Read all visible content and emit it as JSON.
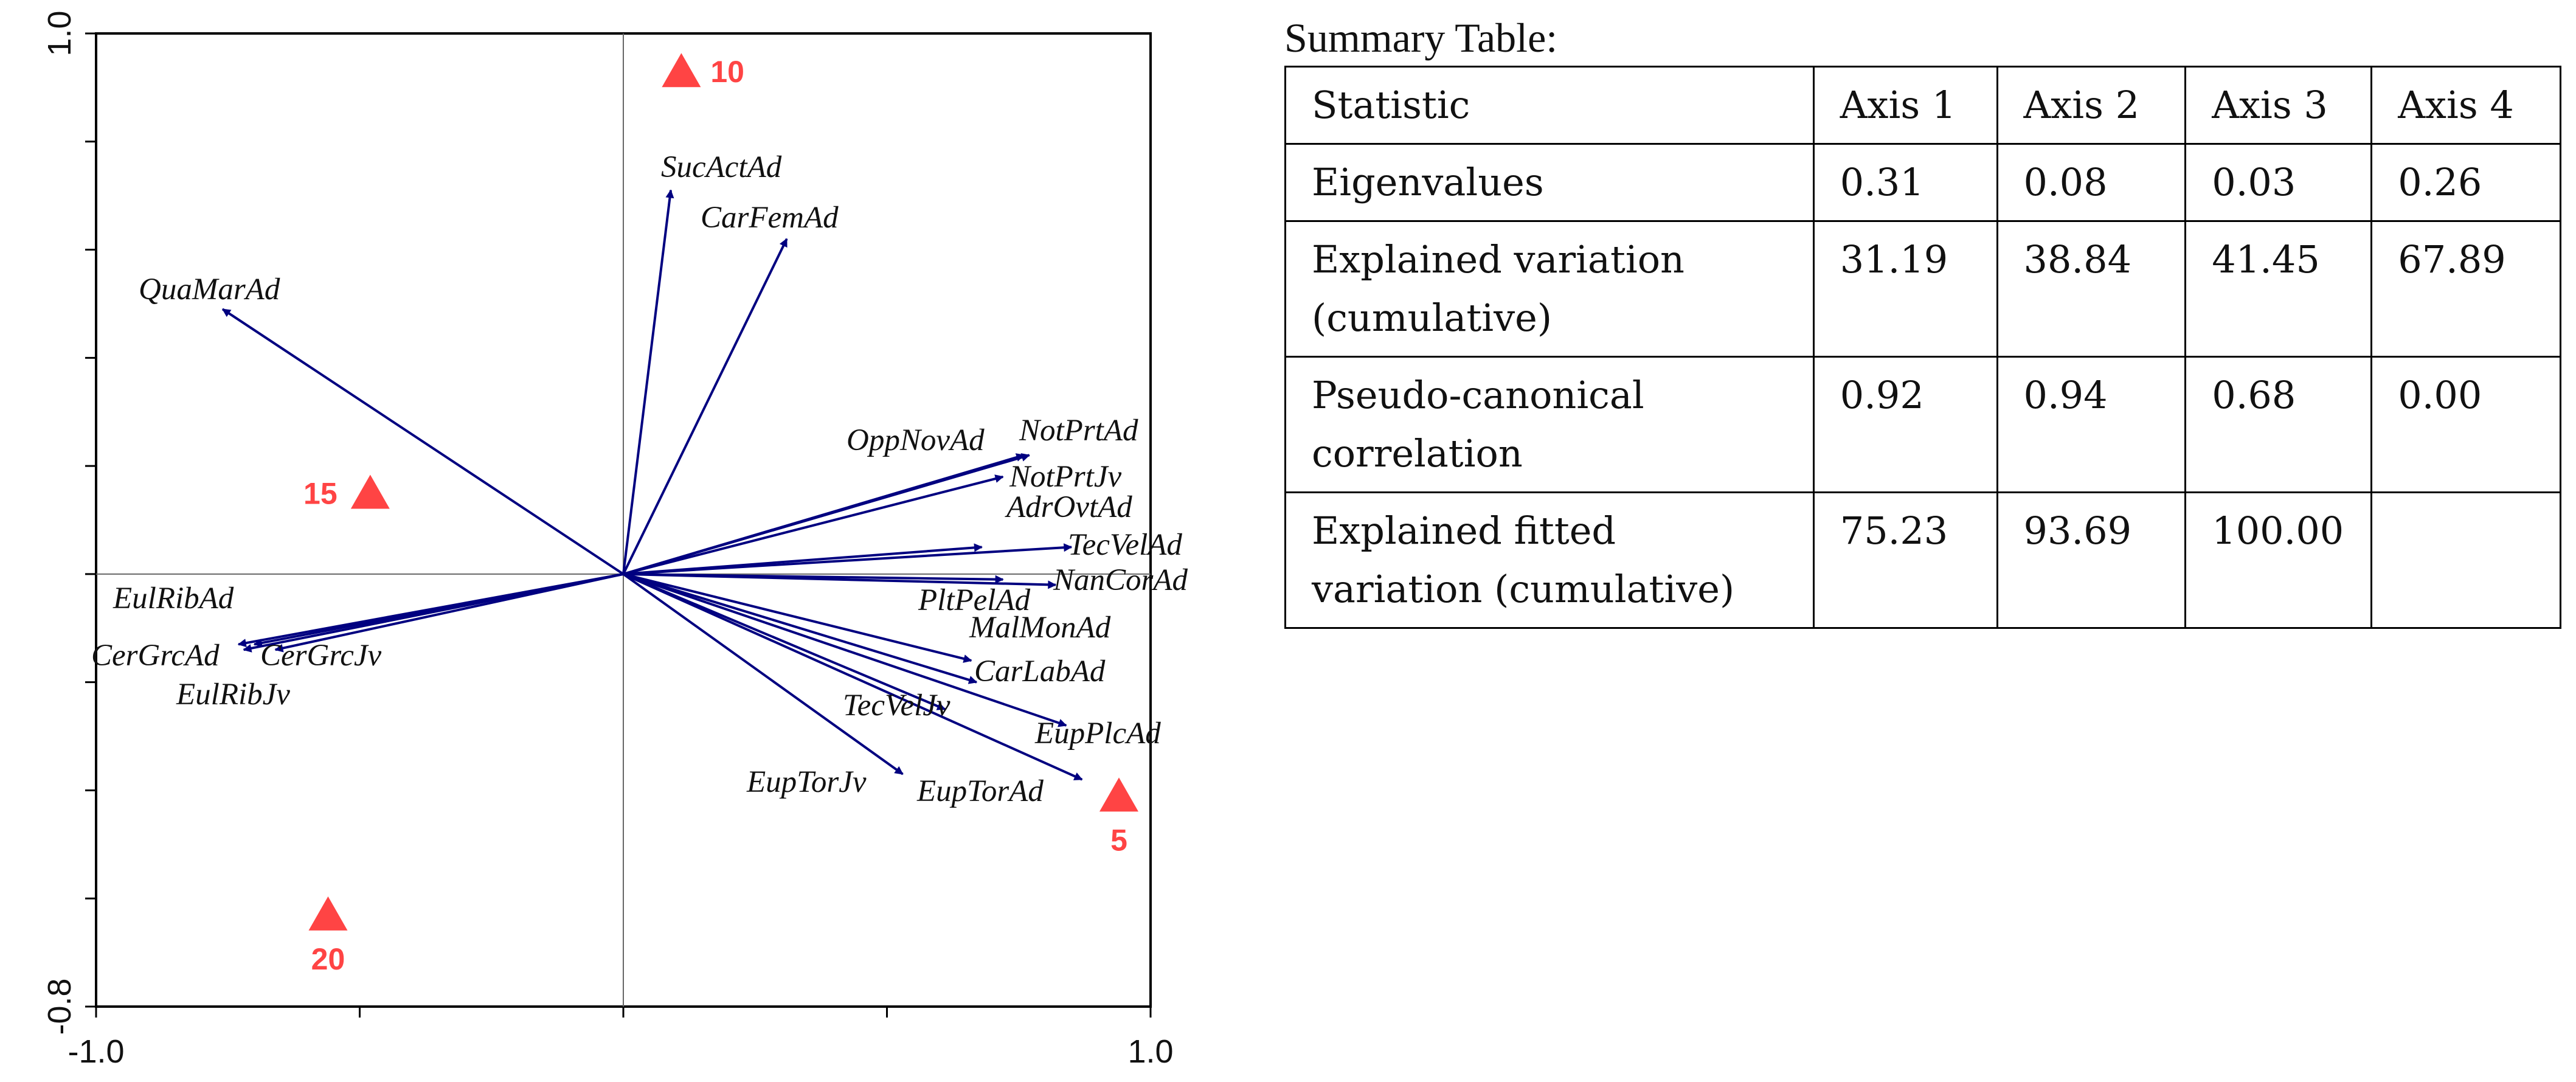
{
  "chart_data": {
    "type": "biplot",
    "xlim": [
      -1.0,
      1.0
    ],
    "ylim": [
      -0.8,
      1.0
    ],
    "x_ticks": [
      -1.0,
      -0.5,
      0.0,
      0.5,
      1.0
    ],
    "y_ticks": [
      -0.8,
      -0.6,
      -0.4,
      -0.2,
      0.0,
      0.2,
      0.4,
      0.6,
      0.8,
      1.0
    ],
    "x_tick_labels": [
      {
        "value": -1.0,
        "label": "-1.0"
      },
      {
        "value": 1.0,
        "label": "1.0"
      }
    ],
    "y_tick_labels": [
      {
        "value": -0.8,
        "label": "-0.8"
      },
      {
        "value": 1.0,
        "label": "1.0"
      }
    ],
    "species": [
      {
        "label": "QuaMarAd",
        "x": -0.76,
        "y": 0.49
      },
      {
        "label": "SucActAd",
        "x": 0.09,
        "y": 0.71
      },
      {
        "label": "CarFemAd",
        "x": 0.31,
        "y": 0.62
      },
      {
        "label": "OppNovAd",
        "x": 0.76,
        "y": 0.22
      },
      {
        "label": "NotPrtAd",
        "x": 0.77,
        "y": 0.22
      },
      {
        "label": "NotPrtJv",
        "x": 0.72,
        "y": 0.18
      },
      {
        "label": "AdrOvtAd",
        "x": 0.68,
        "y": 0.05
      },
      {
        "label": "TecVelAd",
        "x": 0.85,
        "y": 0.05
      },
      {
        "label": "NanCorAd",
        "x": 0.82,
        "y": -0.02
      },
      {
        "label": "PltPelAd",
        "x": 0.72,
        "y": -0.01
      },
      {
        "label": "MalMonAd",
        "x": 0.66,
        "y": -0.16
      },
      {
        "label": "CarLabAd",
        "x": 0.67,
        "y": -0.2
      },
      {
        "label": "TecVelJv",
        "x": 0.61,
        "y": -0.25
      },
      {
        "label": "EupPlcAd",
        "x": 0.84,
        "y": -0.28
      },
      {
        "label": "EupTorAd",
        "x": 0.87,
        "y": -0.38
      },
      {
        "label": "EupTorJv",
        "x": 0.53,
        "y": -0.37
      },
      {
        "label": "EulRibAd",
        "x": -0.73,
        "y": -0.13
      },
      {
        "label": "CerGrcAd",
        "x": -0.72,
        "y": -0.14
      },
      {
        "label": "CerGrcJv",
        "x": -0.66,
        "y": -0.14
      },
      {
        "label": "EulRibJv",
        "x": -0.7,
        "y": -0.13
      }
    ],
    "sites": [
      {
        "label": "10",
        "x": 0.11,
        "y": 0.93
      },
      {
        "label": "15",
        "x": -0.48,
        "y": 0.15
      },
      {
        "label": "5",
        "x": 0.94,
        "y": -0.41
      },
      {
        "label": "20",
        "x": -0.56,
        "y": -0.63
      }
    ],
    "colors": {
      "arrow": "#000080",
      "site": "#ff4444",
      "axis": "#000000",
      "zero_line": "#666666"
    }
  },
  "summary": {
    "caption": "Summary Table:",
    "rows": [
      [
        "Statistic",
        "Axis 1",
        "Axis 2",
        "Axis 3",
        "Axis 4"
      ],
      [
        "Eigenvalues",
        "0.31",
        "0.08",
        "0.03",
        "0.26"
      ],
      [
        "Explained variation (cumulative)",
        "31.19",
        "38.84",
        "41.45",
        "67.89"
      ],
      [
        "Pseudo-canonical correlation",
        "0.92",
        "0.94",
        "0.68",
        "0.00"
      ],
      [
        "Explained fitted variation (cumulative)",
        "75.23",
        "93.69",
        "100.00",
        ""
      ]
    ]
  }
}
